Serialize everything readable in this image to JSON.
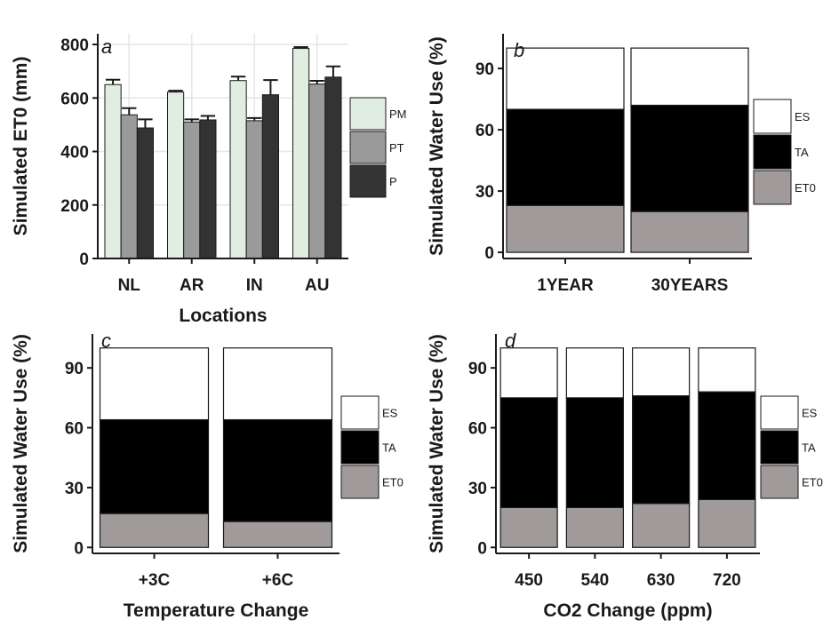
{
  "colors": {
    "PM": "#dfeee0",
    "PT": "#9a9a9a",
    "P": "#333333",
    "ES": "#ffffff",
    "ET0": "#a09a9a",
    "TA": "#000000",
    "grid": "#e6e6e6",
    "axis": "#1a1a1a"
  },
  "chart_data": [
    {
      "panel": "a",
      "type": "bar",
      "ylabel": "Simulated ET0 (mm)",
      "xlabel": "Locations",
      "ylim": [
        0,
        840
      ],
      "yticks": [
        0,
        200,
        400,
        600,
        800
      ],
      "grid": true,
      "legend_position": "right",
      "categories": [
        "NL",
        "AR",
        "IN",
        "AU"
      ],
      "series": [
        {
          "name": "PM",
          "values": [
            650,
            622,
            665,
            785
          ],
          "errors": [
            18,
            5,
            15,
            5
          ]
        },
        {
          "name": "PT",
          "values": [
            537,
            510,
            515,
            652
          ],
          "errors": [
            25,
            10,
            10,
            12
          ]
        },
        {
          "name": "P",
          "values": [
            488,
            518,
            612,
            678
          ],
          "errors": [
            32,
            15,
            55,
            40
          ]
        }
      ]
    },
    {
      "panel": "b",
      "type": "bar",
      "stacked": true,
      "ylabel": "Simulated Water Use (%)",
      "xlabel": "",
      "ylim": [
        -3,
        107
      ],
      "yticks": [
        0,
        30,
        60,
        90
      ],
      "grid": false,
      "legend_position": "right",
      "categories": [
        "1YEAR",
        "30YEARS"
      ],
      "series": [
        {
          "name": "ET0",
          "values": [
            23,
            20
          ]
        },
        {
          "name": "TA",
          "values": [
            47,
            52
          ]
        },
        {
          "name": "ES",
          "values": [
            30,
            28
          ]
        }
      ]
    },
    {
      "panel": "c",
      "type": "bar",
      "stacked": true,
      "ylabel": "Simulated Water Use (%)",
      "xlabel": "Temperature Change",
      "ylim": [
        -3,
        107
      ],
      "yticks": [
        0,
        30,
        60,
        90
      ],
      "grid": false,
      "legend_position": "right",
      "categories": [
        "+3C",
        "+6C"
      ],
      "series": [
        {
          "name": "ET0",
          "values": [
            17,
            13
          ]
        },
        {
          "name": "TA",
          "values": [
            47,
            51
          ]
        },
        {
          "name": "ES",
          "values": [
            36,
            36
          ]
        }
      ]
    },
    {
      "panel": "d",
      "type": "bar",
      "stacked": true,
      "ylabel": "Simulated Water Use (%)",
      "xlabel": "CO2 Change (ppm)",
      "ylim": [
        -3,
        107
      ],
      "yticks": [
        0,
        30,
        60,
        90
      ],
      "grid": false,
      "legend_position": "right",
      "categories": [
        "450",
        "540",
        "630",
        "720"
      ],
      "series": [
        {
          "name": "ET0",
          "values": [
            20,
            20,
            22,
            24
          ]
        },
        {
          "name": "TA",
          "values": [
            55,
            55,
            54,
            54
          ]
        },
        {
          "name": "ES",
          "values": [
            25,
            25,
            24,
            22
          ]
        }
      ]
    }
  ]
}
